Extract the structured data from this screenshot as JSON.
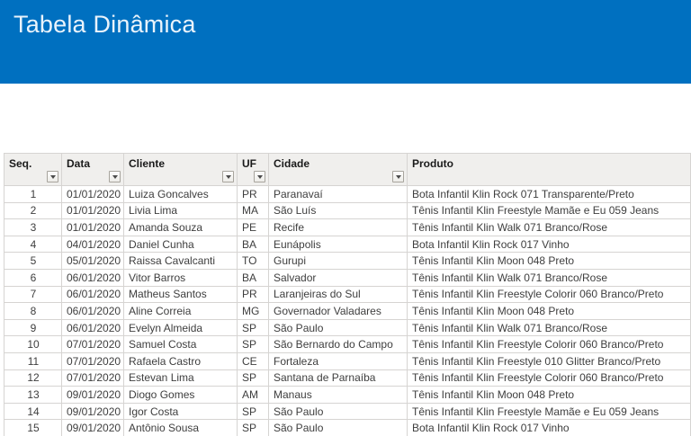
{
  "banner": {
    "title": "Tabela Dinâmica",
    "bg_color": "#0070C0",
    "text_color": "#EAF3FB"
  },
  "icons": {
    "filter-dropdown-icon": "▼"
  },
  "colors": {
    "header_bg": "#F0EFED",
    "gridline": "#D6D4D2",
    "body_text": "#3E3E3E"
  },
  "table": {
    "columns": [
      {
        "key": "seq",
        "label": "Seq.",
        "has_filter": true,
        "align": "center"
      },
      {
        "key": "data",
        "label": "Data",
        "has_filter": true,
        "align": "left"
      },
      {
        "key": "cliente",
        "label": "Cliente",
        "has_filter": true,
        "align": "left"
      },
      {
        "key": "uf",
        "label": "UF",
        "has_filter": true,
        "align": "left"
      },
      {
        "key": "cidade",
        "label": "Cidade",
        "has_filter": true,
        "align": "left"
      },
      {
        "key": "produto",
        "label": "Produto",
        "has_filter": false,
        "align": "left"
      }
    ],
    "rows": [
      [
        "1",
        "01/01/2020",
        "Luiza Goncalves",
        "PR",
        "Paranavaí",
        "Bota Infantil Klin Rock 071 Transparente/Preto"
      ],
      [
        "2",
        "01/01/2020",
        "Livia Lima",
        "MA",
        "São Luís",
        "Tênis Infantil Klin Freestyle Mamãe e Eu 059 Jeans"
      ],
      [
        "3",
        "01/01/2020",
        "Amanda Souza",
        "PE",
        "Recife",
        "Tênis Infantil Klin Walk 071 Branco/Rose"
      ],
      [
        "4",
        "04/01/2020",
        "Daniel Cunha",
        "BA",
        "Eunápolis",
        "Bota Infantil Klin Rock 017 Vinho"
      ],
      [
        "5",
        "05/01/2020",
        "Raissa Cavalcanti",
        "TO",
        "Gurupi",
        "Tênis Infantil Klin Moon 048 Preto"
      ],
      [
        "6",
        "06/01/2020",
        "Vitor Barros",
        "BA",
        "Salvador",
        "Tênis Infantil Klin Walk 071 Branco/Rose"
      ],
      [
        "7",
        "06/01/2020",
        "Matheus Santos",
        "PR",
        "Laranjeiras do Sul",
        "Tênis Infantil Klin Freestyle Colorir 060 Branco/Preto"
      ],
      [
        "8",
        "06/01/2020",
        "Aline Correia",
        "MG",
        "Governador Valadares",
        "Tênis Infantil Klin Moon 048 Preto"
      ],
      [
        "9",
        "06/01/2020",
        "Evelyn Almeida",
        "SP",
        "São Paulo",
        "Tênis Infantil Klin Walk 071 Branco/Rose"
      ],
      [
        "10",
        "07/01/2020",
        "Samuel Costa",
        "SP",
        "São Bernardo do Campo",
        "Tênis Infantil Klin Freestyle Colorir 060 Branco/Preto"
      ],
      [
        "11",
        "07/01/2020",
        "Rafaela Castro",
        "CE",
        "Fortaleza",
        "Tênis Infantil Klin Freestyle 010 Glitter Branco/Preto"
      ],
      [
        "12",
        "07/01/2020",
        "Estevan Lima",
        "SP",
        "Santana de Parnaíba",
        "Tênis Infantil Klin Freestyle Colorir 060 Branco/Preto"
      ],
      [
        "13",
        "09/01/2020",
        "Diogo Gomes",
        "AM",
        "Manaus",
        "Tênis Infantil Klin Moon 048 Preto"
      ],
      [
        "14",
        "09/01/2020",
        "Igor Costa",
        "SP",
        "São Paulo",
        "Tênis Infantil Klin Freestyle Mamãe e Eu 059 Jeans"
      ],
      [
        "15",
        "09/01/2020",
        "Antônio Sousa",
        "SP",
        "São Paulo",
        "Bota Infantil Klin Rock 017 Vinho"
      ]
    ]
  }
}
